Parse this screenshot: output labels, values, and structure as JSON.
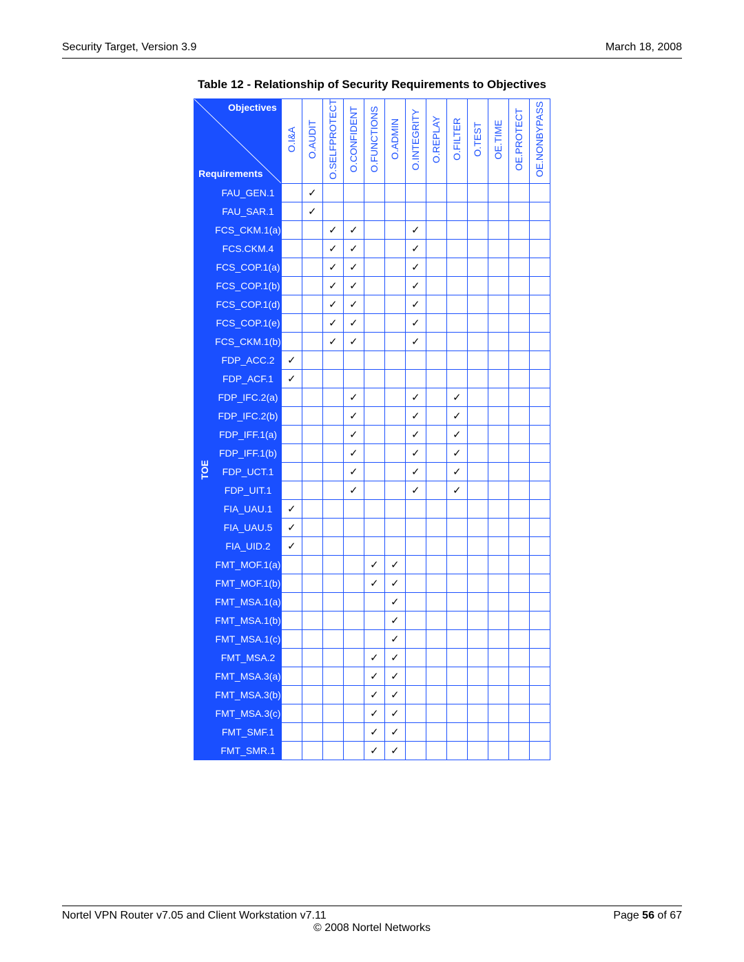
{
  "header": {
    "left": "Security Target, Version 3.9",
    "right": "March 18, 2008"
  },
  "tableTitle": "Table 12 - Relationship of Security Requirements to Objectives",
  "cornerLabels": {
    "top": "Objectives",
    "bottom": "Requirements"
  },
  "group": "TOE",
  "columns": [
    "O.I&A",
    "O.AUDIT",
    "O.SELFPROTECT",
    "O.CONFIDENT",
    "O.FUNCTIONS",
    "O.ADMIN",
    "O.INTEGRITY",
    "O.REPLAY",
    "O.FILTER",
    "O.TEST",
    "OE.TIME",
    "OE.PROTECT",
    "OE.NONBYPASS"
  ],
  "rows": [
    {
      "label": "FAU_GEN.1",
      "marks": [
        1
      ]
    },
    {
      "label": "FAU_SAR.1",
      "marks": [
        1
      ]
    },
    {
      "label": "FCS_CKM.1(a)",
      "marks": [
        2,
        3,
        6
      ]
    },
    {
      "label": "FCS.CKM.4",
      "marks": [
        2,
        3,
        6
      ]
    },
    {
      "label": "FCS_COP.1(a)",
      "marks": [
        2,
        3,
        6
      ]
    },
    {
      "label": "FCS_COP.1(b)",
      "marks": [
        2,
        3,
        6
      ]
    },
    {
      "label": "FCS_COP.1(d)",
      "marks": [
        2,
        3,
        6
      ]
    },
    {
      "label": "FCS_COP.1(e)",
      "marks": [
        2,
        3,
        6
      ]
    },
    {
      "label": "FCS_CKM.1(b)",
      "marks": [
        2,
        3,
        6
      ]
    },
    {
      "label": "FDP_ACC.2",
      "marks": [
        0
      ]
    },
    {
      "label": "FDP_ACF.1",
      "marks": [
        0
      ]
    },
    {
      "label": "FDP_IFC.2(a)",
      "marks": [
        3,
        6,
        8
      ]
    },
    {
      "label": "FDP_IFC.2(b)",
      "marks": [
        3,
        6,
        8
      ]
    },
    {
      "label": "FDP_IFF.1(a)",
      "marks": [
        3,
        6,
        8
      ]
    },
    {
      "label": "FDP_IFF.1(b)",
      "marks": [
        3,
        6,
        8
      ]
    },
    {
      "label": "FDP_UCT.1",
      "marks": [
        3,
        6,
        8
      ]
    },
    {
      "label": "FDP_UIT.1",
      "marks": [
        3,
        6,
        8
      ]
    },
    {
      "label": "FIA_UAU.1",
      "marks": [
        0
      ]
    },
    {
      "label": "FIA_UAU.5",
      "marks": [
        0
      ]
    },
    {
      "label": "FIA_UID.2",
      "marks": [
        0
      ]
    },
    {
      "label": "FMT_MOF.1(a)",
      "marks": [
        4,
        5
      ]
    },
    {
      "label": "FMT_MOF.1(b)",
      "marks": [
        4,
        5
      ]
    },
    {
      "label": "FMT_MSA.1(a)",
      "marks": [
        5
      ]
    },
    {
      "label": "FMT_MSA.1(b)",
      "marks": [
        5
      ]
    },
    {
      "label": "FMT_MSA.1(c)",
      "marks": [
        5
      ]
    },
    {
      "label": "FMT_MSA.2",
      "marks": [
        4,
        5
      ]
    },
    {
      "label": "FMT_MSA.3(a)",
      "marks": [
        4,
        5
      ]
    },
    {
      "label": "FMT_MSA.3(b)",
      "marks": [
        4,
        5
      ]
    },
    {
      "label": "FMT_MSA.3(c)",
      "marks": [
        4,
        5
      ]
    },
    {
      "label": "FMT_SMF.1",
      "marks": [
        4,
        5
      ]
    },
    {
      "label": "FMT_SMR.1",
      "marks": [
        4,
        5
      ]
    }
  ],
  "checkmark": "✓",
  "footer": {
    "left": "Nortel VPN Router v7.05 and Client Workstation v7.11",
    "right_prefix": "Page ",
    "page": "56",
    "right_suffix": " of 67",
    "copyright": "© 2008 Nortel Networks"
  },
  "colors": {
    "blue": "#1a4fff",
    "white": "#ffffff",
    "black": "#000000"
  }
}
